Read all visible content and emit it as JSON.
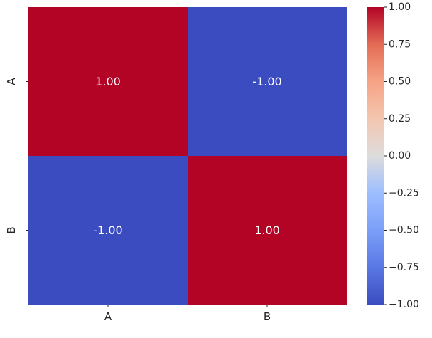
{
  "chart_data": {
    "type": "heatmap",
    "title": "",
    "xlabel": "",
    "ylabel": "",
    "x_categories": [
      "A",
      "B"
    ],
    "y_categories": [
      "A",
      "B"
    ],
    "values": [
      [
        1.0,
        -1.0
      ],
      [
        -1.0,
        1.0
      ]
    ],
    "cell_labels": [
      [
        "1.00",
        "-1.00"
      ],
      [
        "-1.00",
        "1.00"
      ]
    ],
    "colormap": "coolwarm",
    "vmin": -1.0,
    "vmax": 1.0,
    "colorbar": {
      "ticks": [
        1.0,
        0.75,
        0.5,
        0.25,
        0.0,
        -0.25,
        -0.5,
        -0.75,
        -1.0
      ],
      "tick_labels": [
        "1.00",
        "0.75",
        "0.50",
        "0.25",
        "0.00",
        "−0.25",
        "−0.50",
        "−0.75",
        "−1.00"
      ]
    },
    "colors": {
      "high": "#b40426",
      "low": "#3b4cc0",
      "mid": "#dddddd",
      "annotation_text": "#ffffff",
      "tick_text": "#262626"
    }
  }
}
